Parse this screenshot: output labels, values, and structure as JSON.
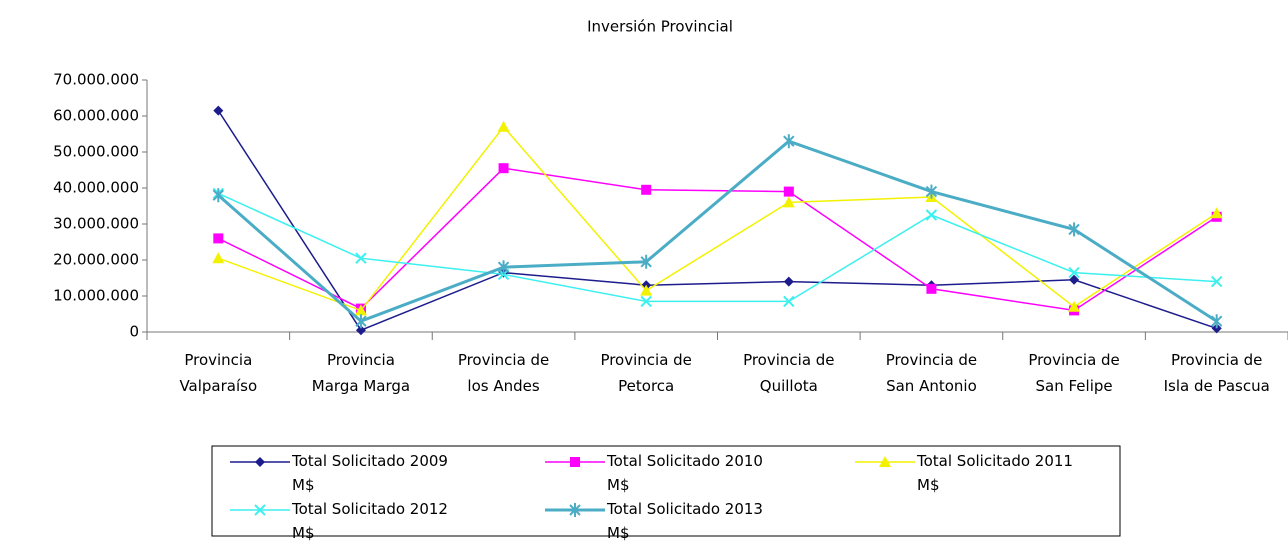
{
  "chart_data": {
    "type": "line",
    "title": "Inversión Provincial",
    "categories": [
      "Provincia\nValparaíso",
      "Provincia\nMarga Marga",
      "Provincia de\nlos Andes",
      "Provincia de\nPetorca",
      "Provincia de\nQuillota",
      "Provincia de\nSan Antonio",
      "Provincia de\nSan Felipe",
      "Provincia de\nIsla de Pascua"
    ],
    "series": [
      {
        "name": "Total Solicitado 2009\nM$",
        "color": "#1c1c8c",
        "marker": "diamond",
        "width": 1.5,
        "values": [
          61500000,
          500000,
          16500000,
          13000000,
          14000000,
          13000000,
          14500000,
          1000000
        ]
      },
      {
        "name": "Total Solicitado 2010\nM$",
        "color": "#ff00ff",
        "marker": "square",
        "width": 1.5,
        "values": [
          26000000,
          6500000,
          45500000,
          39500000,
          39000000,
          12000000,
          6000000,
          32000000
        ]
      },
      {
        "name": "Total Solicitado  2011\nM$",
        "color": "#f2f200",
        "marker": "triangle",
        "width": 1.5,
        "values": [
          20500000,
          6000000,
          57000000,
          11500000,
          36000000,
          37500000,
          7000000,
          33000000
        ]
      },
      {
        "name": "Total Solicitado  2012\nM$",
        "color": "#3cf0f0",
        "marker": "x",
        "width": 1.5,
        "values": [
          38500000,
          20500000,
          16000000,
          8500000,
          8500000,
          32500000,
          16500000,
          14000000
        ]
      },
      {
        "name": "Total Solicitado  2013\nM$",
        "color": "#4bacc6",
        "marker": "star",
        "width": 3,
        "values": [
          38000000,
          3000000,
          18000000,
          19500000,
          53000000,
          39000000,
          28500000,
          3000000
        ]
      }
    ],
    "ylim": [
      0,
      70000000
    ],
    "yticks": [
      0,
      {
        "value": 10000000,
        "label": "10.000.000"
      },
      {
        "value": 20000000,
        "label": "20.000.000"
      },
      {
        "value": 30000000,
        "label": "30.000.000"
      },
      {
        "value": 40000000,
        "label": "40.000.000"
      },
      {
        "value": 50000000,
        "label": "50.000.000"
      },
      {
        "value": 60000000,
        "label": "60.000.000"
      },
      {
        "value": 70000000,
        "label": "70.000.000"
      }
    ],
    "grid": false
  }
}
